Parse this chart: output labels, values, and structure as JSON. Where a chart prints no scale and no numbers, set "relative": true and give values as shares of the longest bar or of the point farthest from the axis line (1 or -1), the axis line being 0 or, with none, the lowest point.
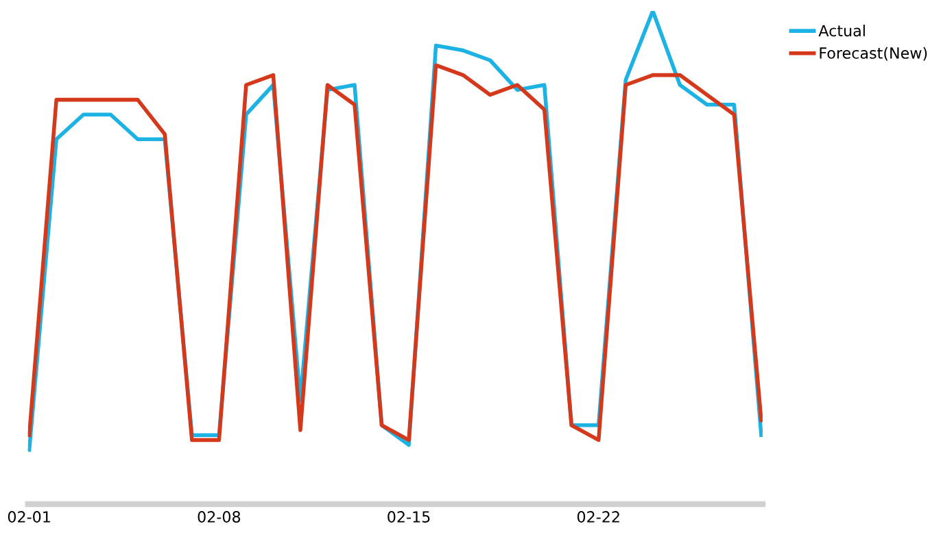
{
  "chart_data": {
    "type": "line",
    "relative": true,
    "legend": "top right",
    "line_style": "solid",
    "marker": "none",
    "categories": [
      "02-01",
      null,
      null,
      null,
      null,
      null,
      null,
      "02-08",
      null,
      null,
      null,
      null,
      null,
      null,
      "02-15",
      null,
      null,
      null,
      null,
      null,
      null,
      "02-22",
      null,
      null,
      null,
      null,
      null,
      null
    ],
    "series": [
      {
        "name": "Actual",
        "color": "#1cb2e4",
        "values": [
          0.11,
          0.74,
          0.79,
          0.79,
          0.74,
          0.74,
          0.14,
          0.14,
          0.79,
          0.85,
          0.21,
          0.84,
          0.85,
          0.16,
          0.12,
          0.93,
          0.92,
          0.9,
          0.84,
          0.85,
          0.16,
          0.16,
          0.86,
          1,
          0.85,
          0.81,
          0.81,
          0.14
        ]
      },
      {
        "name": "Forecast(New)",
        "color": "#d4391c",
        "values": [
          0.14,
          0.82,
          0.82,
          0.82,
          0.82,
          0.75,
          0.13,
          0.13,
          0.85,
          0.87,
          0.15,
          0.85,
          0.81,
          0.16,
          0.13,
          0.89,
          0.87,
          0.83,
          0.85,
          0.8,
          0.16,
          0.13,
          0.85,
          0.87,
          0.87,
          0.83,
          0.79,
          0.17
        ]
      }
    ]
  }
}
